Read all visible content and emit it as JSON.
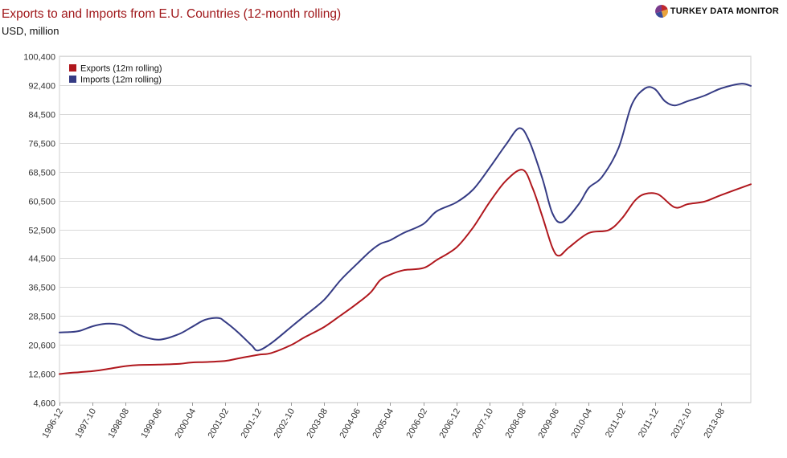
{
  "header": {
    "title": "Exports to and Imports from E.U. Countries (12-month rolling)",
    "subtitle": "USD, million",
    "brand": "TURKEY DATA MONITOR",
    "brand_icon": "pie-logo-icon"
  },
  "colors": {
    "exports": "#b0171d",
    "imports": "#353b84",
    "grid": "#d9d9d9",
    "title": "#a0181b"
  },
  "chart_data": {
    "type": "line",
    "title": "Exports to and Imports from E.U. Countries (12-month rolling)",
    "subtitle": "USD, million",
    "ylim": [
      4600,
      100400
    ],
    "yticks": [
      4600,
      12600,
      20600,
      28500,
      36500,
      44500,
      52500,
      60500,
      68500,
      76500,
      84500,
      92400,
      100400
    ],
    "ytick_labels": [
      "4,600",
      "12,600",
      "20,600",
      "28,500",
      "36,500",
      "44,500",
      "52,500",
      "60,500",
      "68,500",
      "76,500",
      "84,500",
      "92,400",
      "100,400"
    ],
    "x_start": "1996-12",
    "x_end": "2014-05",
    "xticks": [
      "1996-12",
      "1997-10",
      "1998-08",
      "1999-06",
      "2000-04",
      "2001-02",
      "2001-12",
      "2002-10",
      "2003-08",
      "2004-06",
      "2005-04",
      "2006-02",
      "2006-12",
      "2007-10",
      "2008-08",
      "2009-06",
      "2010-04",
      "2011-02",
      "2011-12",
      "2012-10",
      "2013-08"
    ],
    "grid": true,
    "legend_position": "top-left",
    "series": [
      {
        "name": "Exports (12m rolling)",
        "points": [
          [
            "1996-12",
            12500
          ],
          [
            "1997-03",
            12800
          ],
          [
            "1997-06",
            13000
          ],
          [
            "1997-10",
            13300
          ],
          [
            "1998-02",
            13800
          ],
          [
            "1998-06",
            14400
          ],
          [
            "1998-08",
            14700
          ],
          [
            "1998-12",
            15000
          ],
          [
            "1999-06",
            15100
          ],
          [
            "1999-12",
            15300
          ],
          [
            "2000-04",
            15700
          ],
          [
            "2000-08",
            15800
          ],
          [
            "2001-02",
            16100
          ],
          [
            "2001-06",
            16800
          ],
          [
            "2001-12",
            17800
          ],
          [
            "2002-04",
            18300
          ],
          [
            "2002-10",
            20500
          ],
          [
            "2003-02",
            22600
          ],
          [
            "2003-08",
            25500
          ],
          [
            "2004-01",
            28700
          ],
          [
            "2004-06",
            32000
          ],
          [
            "2004-10",
            35000
          ],
          [
            "2005-01",
            38500
          ],
          [
            "2005-04",
            40000
          ],
          [
            "2005-08",
            41200
          ],
          [
            "2006-02",
            41800
          ],
          [
            "2006-06",
            44000
          ],
          [
            "2006-12",
            47500
          ],
          [
            "2007-05",
            53000
          ],
          [
            "2007-10",
            60000
          ],
          [
            "2008-03",
            66000
          ],
          [
            "2008-08",
            69000
          ],
          [
            "2008-11",
            64000
          ],
          [
            "2009-02",
            56000
          ],
          [
            "2009-05",
            47500
          ],
          [
            "2009-07",
            45200
          ],
          [
            "2009-10",
            47500
          ],
          [
            "2010-04",
            51500
          ],
          [
            "2010-10",
            52300
          ],
          [
            "2011-02",
            55500
          ],
          [
            "2011-06",
            60500
          ],
          [
            "2011-09",
            62300
          ],
          [
            "2012-01",
            62200
          ],
          [
            "2012-06",
            58600
          ],
          [
            "2012-10",
            59500
          ],
          [
            "2013-03",
            60200
          ],
          [
            "2013-08",
            62000
          ],
          [
            "2014-05",
            65000
          ]
        ]
      },
      {
        "name": "Imports (12m rolling)",
        "points": [
          [
            "1996-12",
            24000
          ],
          [
            "1997-03",
            24100
          ],
          [
            "1997-06",
            24400
          ],
          [
            "1997-10",
            25700
          ],
          [
            "1998-02",
            26400
          ],
          [
            "1998-06",
            26200
          ],
          [
            "1998-08",
            25500
          ],
          [
            "1998-12",
            23300
          ],
          [
            "1999-06",
            22000
          ],
          [
            "1999-12",
            23500
          ],
          [
            "2000-04",
            25500
          ],
          [
            "2000-08",
            27500
          ],
          [
            "2000-12",
            28000
          ],
          [
            "2001-02",
            27000
          ],
          [
            "2001-06",
            24000
          ],
          [
            "2001-10",
            20500
          ],
          [
            "2001-12",
            19000
          ],
          [
            "2002-04",
            21000
          ],
          [
            "2002-10",
            25500
          ],
          [
            "2003-02",
            28500
          ],
          [
            "2003-08",
            33000
          ],
          [
            "2004-01",
            38500
          ],
          [
            "2004-06",
            43000
          ],
          [
            "2004-10",
            46500
          ],
          [
            "2005-01",
            48500
          ],
          [
            "2005-04",
            49500
          ],
          [
            "2005-08",
            51500
          ],
          [
            "2006-02",
            54000
          ],
          [
            "2006-06",
            57500
          ],
          [
            "2006-12",
            60000
          ],
          [
            "2007-05",
            63500
          ],
          [
            "2007-10",
            69500
          ],
          [
            "2008-03",
            76000
          ],
          [
            "2008-07",
            80500
          ],
          [
            "2008-10",
            77000
          ],
          [
            "2009-02",
            66500
          ],
          [
            "2009-05",
            57000
          ],
          [
            "2009-08",
            54500
          ],
          [
            "2010-01",
            59500
          ],
          [
            "2010-04",
            64000
          ],
          [
            "2010-08",
            67000
          ],
          [
            "2011-01",
            75000
          ],
          [
            "2011-05",
            87000
          ],
          [
            "2011-09",
            91500
          ],
          [
            "2011-12",
            91300
          ],
          [
            "2012-03",
            88000
          ],
          [
            "2012-06",
            86800
          ],
          [
            "2012-10",
            88000
          ],
          [
            "2013-03",
            89500
          ],
          [
            "2013-08",
            91500
          ],
          [
            "2014-02",
            92800
          ],
          [
            "2014-05",
            92200
          ]
        ]
      }
    ]
  }
}
